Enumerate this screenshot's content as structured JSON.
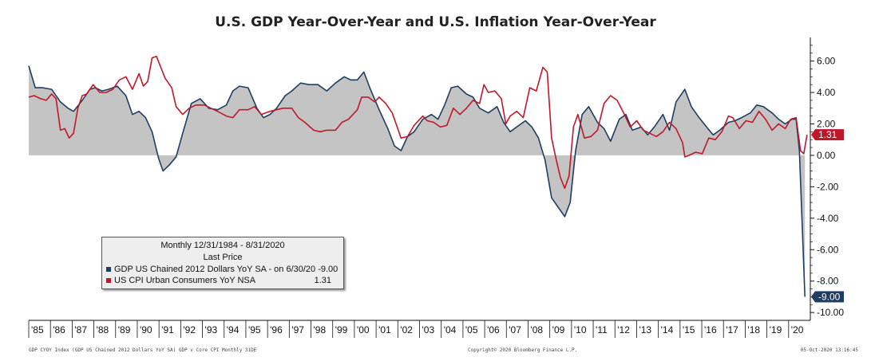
{
  "chart_data": {
    "type": "line",
    "title": "U.S. GDP Year-Over-Year and U.S. Inflation Year-Over-Year",
    "y_ticks": [
      "6.00",
      "4.00",
      "2.00",
      "0.00",
      "-2.00",
      "-4.00",
      "-6.00",
      "-8.00",
      "-10.00"
    ],
    "ylim": [
      -10.5,
      7.5
    ],
    "x_ticks": [
      "'85",
      "'86",
      "'87",
      "'88",
      "'89",
      "'90",
      "'91",
      "'92",
      "'93",
      "'94",
      "'95",
      "'96",
      "'97",
      "'98",
      "'99",
      "'00",
      "'01",
      "'02",
      "'03",
      "'04",
      "'05",
      "'06",
      "'07",
      "'08",
      "'09",
      "'10",
      "'11",
      "'12",
      "'13",
      "'14",
      "'15",
      "'16",
      "'17",
      "'18",
      "'19",
      "'20"
    ],
    "xlim": [
      1984.95,
      2020.75
    ],
    "grid": false,
    "series": [
      {
        "name": "GDP US Chained 2012 Dollars YoY SA",
        "color": "#1f3d63",
        "fill": true,
        "x": [
          1984.95,
          1985.25,
          1985.6,
          1986.0,
          1986.4,
          1986.75,
          1987.0,
          1987.4,
          1987.75,
          1988.0,
          1988.3,
          1988.6,
          1989.0,
          1989.4,
          1989.7,
          1990.0,
          1990.3,
          1990.6,
          1990.9,
          1991.1,
          1991.4,
          1991.7,
          1992.0,
          1992.4,
          1992.8,
          1993.2,
          1993.6,
          1994.0,
          1994.3,
          1994.6,
          1995.0,
          1995.4,
          1995.7,
          1996.0,
          1996.3,
          1996.7,
          1997.0,
          1997.4,
          1997.8,
          1998.2,
          1998.6,
          1999.0,
          1999.4,
          1999.7,
          2000.0,
          2000.3,
          2000.6,
          2001.0,
          2001.4,
          2001.7,
          2002.0,
          2002.3,
          2002.6,
          2003.0,
          2003.4,
          2003.7,
          2004.0,
          2004.3,
          2004.6,
          2005.0,
          2005.3,
          2005.6,
          2006.0,
          2006.4,
          2006.7,
          2007.0,
          2007.4,
          2007.7,
          2008.0,
          2008.3,
          2008.6,
          2008.9,
          2009.2,
          2009.5,
          2009.75,
          2010.0,
          2010.3,
          2010.6,
          2011.0,
          2011.3,
          2011.6,
          2012.0,
          2012.3,
          2012.6,
          2013.0,
          2013.3,
          2013.6,
          2014.0,
          2014.3,
          2014.6,
          2015.0,
          2015.3,
          2015.6,
          2016.0,
          2016.3,
          2016.6,
          2017.0,
          2017.3,
          2017.6,
          2018.0,
          2018.3,
          2018.6,
          2019.0,
          2019.3,
          2019.6,
          2019.9,
          2020.1,
          2020.25,
          2020.5
        ],
        "values": [
          5.7,
          4.3,
          4.3,
          4.2,
          3.4,
          3.0,
          2.8,
          3.5,
          4.2,
          4.3,
          4.1,
          4.2,
          4.4,
          3.8,
          2.6,
          2.8,
          2.4,
          1.5,
          -0.2,
          -1.0,
          -0.6,
          -0.1,
          1.4,
          3.3,
          3.6,
          3.0,
          2.9,
          3.2,
          4.1,
          4.4,
          4.3,
          3.0,
          2.4,
          2.6,
          3.0,
          3.8,
          4.1,
          4.6,
          4.5,
          4.5,
          4.1,
          4.6,
          5.0,
          4.8,
          4.8,
          5.3,
          4.2,
          2.9,
          1.7,
          0.6,
          0.3,
          1.2,
          1.5,
          2.3,
          2.6,
          2.3,
          3.2,
          4.3,
          4.4,
          3.9,
          3.7,
          3.0,
          2.7,
          3.1,
          2.1,
          1.5,
          1.9,
          2.2,
          1.8,
          1.1,
          -0.3,
          -2.7,
          -3.3,
          -3.9,
          -3.0,
          0.3,
          2.6,
          3.1,
          2.1,
          1.7,
          0.9,
          2.3,
          2.6,
          1.6,
          1.8,
          1.3,
          1.8,
          2.6,
          1.6,
          3.4,
          4.2,
          3.1,
          2.5,
          1.8,
          1.3,
          1.6,
          2.1,
          2.2,
          2.4,
          2.7,
          3.2,
          3.1,
          2.7,
          2.3,
          2.0,
          2.3,
          2.3,
          0.3,
          -9.0
        ]
      },
      {
        "name": "US CPI Urban Consumers YoY NSA",
        "color": "#c0182b",
        "fill": false,
        "x": [
          1984.95,
          1985.2,
          1985.5,
          1985.75,
          1986.0,
          1986.2,
          1986.4,
          1986.6,
          1986.8,
          1987.0,
          1987.2,
          1987.4,
          1987.6,
          1987.9,
          1988.2,
          1988.5,
          1988.8,
          1989.1,
          1989.4,
          1989.7,
          1990.0,
          1990.2,
          1990.4,
          1990.6,
          1990.8,
          1991.0,
          1991.2,
          1991.5,
          1991.7,
          1992.0,
          1992.3,
          1992.6,
          1993.0,
          1993.3,
          1993.6,
          1994.0,
          1994.3,
          1994.6,
          1995.0,
          1995.3,
          1995.6,
          1996.0,
          1996.3,
          1996.6,
          1997.0,
          1997.3,
          1997.6,
          1998.0,
          1998.3,
          1998.6,
          1999.0,
          1999.3,
          1999.6,
          2000.0,
          2000.2,
          2000.5,
          2000.8,
          2001.0,
          2001.3,
          2001.6,
          2001.8,
          2002.0,
          2002.3,
          2002.6,
          2003.0,
          2003.2,
          2003.5,
          2003.8,
          2004.1,
          2004.4,
          2004.7,
          2005.0,
          2005.3,
          2005.6,
          2005.8,
          2006.0,
          2006.3,
          2006.6,
          2006.8,
          2007.0,
          2007.3,
          2007.6,
          2007.9,
          2008.2,
          2008.5,
          2008.7,
          2008.9,
          2009.1,
          2009.3,
          2009.5,
          2009.7,
          2009.9,
          2010.1,
          2010.4,
          2010.7,
          2011.0,
          2011.3,
          2011.6,
          2011.9,
          2012.2,
          2012.5,
          2012.8,
          2013.1,
          2013.4,
          2013.7,
          2014.0,
          2014.3,
          2014.6,
          2014.9,
          2015.0,
          2015.2,
          2015.5,
          2015.8,
          2016.1,
          2016.4,
          2016.7,
          2017.0,
          2017.2,
          2017.5,
          2017.8,
          2018.1,
          2018.4,
          2018.7,
          2019.0,
          2019.3,
          2019.6,
          2019.85,
          2020.1,
          2020.3,
          2020.45,
          2020.6
        ],
        "values": [
          3.7,
          3.8,
          3.6,
          3.5,
          3.9,
          3.6,
          1.6,
          1.7,
          1.1,
          1.4,
          3.0,
          3.8,
          3.9,
          4.5,
          4.0,
          4.0,
          4.2,
          4.8,
          5.0,
          4.2,
          5.2,
          4.4,
          4.7,
          6.2,
          6.3,
          5.6,
          4.9,
          4.3,
          3.1,
          2.6,
          3.0,
          3.2,
          3.2,
          3.0,
          2.8,
          2.5,
          2.4,
          2.9,
          2.9,
          3.1,
          2.6,
          2.8,
          2.9,
          3.0,
          3.0,
          2.4,
          2.1,
          1.6,
          1.5,
          1.6,
          1.6,
          2.1,
          2.3,
          2.9,
          3.7,
          3.7,
          3.4,
          3.7,
          3.3,
          2.7,
          1.9,
          1.1,
          1.2,
          1.9,
          2.5,
          2.2,
          2.1,
          1.8,
          1.9,
          3.0,
          2.6,
          3.0,
          3.5,
          3.3,
          4.5,
          4.0,
          4.1,
          3.6,
          2.0,
          2.5,
          2.8,
          2.4,
          4.3,
          4.1,
          5.6,
          5.3,
          1.1,
          -0.2,
          -1.4,
          -2.1,
          -1.3,
          1.8,
          2.6,
          1.1,
          1.2,
          1.6,
          3.3,
          3.8,
          3.5,
          2.7,
          1.8,
          2.2,
          1.6,
          1.4,
          1.2,
          1.5,
          2.1,
          1.7,
          0.8,
          -0.1,
          0.0,
          0.2,
          0.1,
          1.1,
          1.0,
          1.5,
          2.5,
          2.4,
          1.7,
          2.2,
          2.1,
          2.8,
          2.3,
          1.6,
          2.0,
          1.7,
          2.3,
          2.4,
          0.3,
          0.1,
          1.31
        ]
      }
    ],
    "last_labels": [
      {
        "text": "1.31",
        "value": 1.31,
        "color": "#c0182b"
      },
      {
        "text": "-9.00",
        "value": -9.0,
        "color": "#1f3d63"
      }
    ],
    "legend": {
      "header_1": "Monthly 12/31/1984 - 8/31/2020",
      "header_2": "Last Price",
      "items": [
        {
          "label": "GDP US Chained 2012 Dollars YoY SA -   on 6/30/20 -9.00",
          "value": "",
          "color": "#1f3d63"
        },
        {
          "label": "US CPI Urban Consumers YoY NSA",
          "value": "1.31",
          "color": "#c0182b"
        }
      ]
    },
    "footer_left": "GDP CYOY Index (GDP US Chained 2012 Dollars YoY SA) GDP v Core CPI  Monthly 31DE",
    "footer_center": "Copyright© 2020 Bloomberg Finance L.P.",
    "footer_right": "05-Oct-2020 13:16:45"
  }
}
